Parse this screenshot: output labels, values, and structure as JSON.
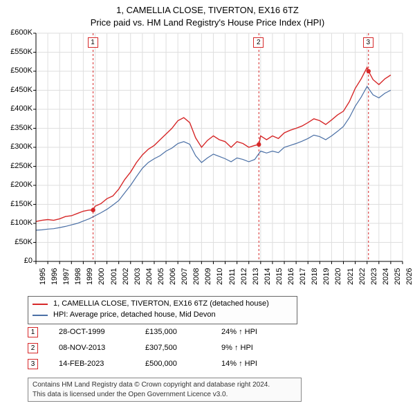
{
  "title_line1": "1, CAMELLIA CLOSE, TIVERTON, EX16 6TZ",
  "title_line2": "Price paid vs. HM Land Registry's House Price Index (HPI)",
  "chart": {
    "type": "line",
    "background_color": "#ffffff",
    "grid_color": "#dedede",
    "axis_color": "#000000",
    "axis_fontsize": 11,
    "ylim": [
      0,
      600000
    ],
    "ytick_step": 50000,
    "ytick_labels": [
      "£0",
      "£50K",
      "£100K",
      "£150K",
      "£200K",
      "£250K",
      "£300K",
      "£350K",
      "£400K",
      "£450K",
      "£500K",
      "£550K",
      "£600K"
    ],
    "xlim": [
      1995,
      2026
    ],
    "xtick_step": 1,
    "xtick_labels": [
      "1995",
      "1996",
      "1997",
      "1998",
      "1999",
      "2000",
      "2001",
      "2002",
      "2003",
      "2004",
      "2005",
      "2006",
      "2007",
      "2008",
      "2009",
      "2010",
      "2011",
      "2012",
      "2013",
      "2014",
      "2015",
      "2016",
      "2017",
      "2018",
      "2019",
      "2020",
      "2021",
      "2022",
      "2023",
      "2024",
      "2025",
      "2026"
    ],
    "series": [
      {
        "name": "price_paid",
        "label": "1, CAMELLIA CLOSE, TIVERTON, EX16 6TZ (detached house)",
        "color": "#d62728",
        "line_width": 1.4,
        "x": [
          1995.0,
          1995.5,
          1996.0,
          1996.5,
          1997.0,
          1997.5,
          1998.0,
          1998.5,
          1999.0,
          1999.5,
          1999.8,
          2000.0,
          2000.5,
          2001.0,
          2001.5,
          2002.0,
          2002.5,
          2003.0,
          2003.5,
          2004.0,
          2004.5,
          2005.0,
          2005.5,
          2006.0,
          2006.5,
          2007.0,
          2007.5,
          2008.0,
          2008.5,
          2009.0,
          2009.5,
          2010.0,
          2010.5,
          2011.0,
          2011.5,
          2012.0,
          2012.5,
          2013.0,
          2013.5,
          2013.85,
          2014.0,
          2014.5,
          2015.0,
          2015.5,
          2016.0,
          2016.5,
          2017.0,
          2017.5,
          2018.0,
          2018.5,
          2019.0,
          2019.5,
          2020.0,
          2020.5,
          2021.0,
          2021.5,
          2022.0,
          2022.5,
          2023.0,
          2023.12,
          2023.5,
          2024.0,
          2024.5,
          2025.0
        ],
        "y": [
          105000,
          108000,
          110000,
          108000,
          112000,
          118000,
          120000,
          126000,
          132000,
          135000,
          135000,
          145000,
          152000,
          165000,
          172000,
          190000,
          215000,
          235000,
          260000,
          280000,
          295000,
          305000,
          320000,
          335000,
          350000,
          370000,
          378000,
          365000,
          325000,
          300000,
          318000,
          330000,
          320000,
          315000,
          300000,
          315000,
          310000,
          300000,
          305000,
          307500,
          330000,
          320000,
          330000,
          323000,
          338000,
          345000,
          350000,
          356000,
          365000,
          375000,
          370000,
          360000,
          372000,
          385000,
          395000,
          420000,
          455000,
          480000,
          510000,
          500000,
          478000,
          465000,
          480000,
          490000
        ]
      },
      {
        "name": "hpi",
        "label": "HPI: Average price, detached house, Mid Devon",
        "color": "#4a6fa5",
        "line_width": 1.2,
        "x": [
          1995.0,
          1995.5,
          1996.0,
          1996.5,
          1997.0,
          1997.5,
          1998.0,
          1998.5,
          1999.0,
          1999.5,
          2000.0,
          2000.5,
          2001.0,
          2001.5,
          2002.0,
          2002.5,
          2003.0,
          2003.5,
          2004.0,
          2004.5,
          2005.0,
          2005.5,
          2006.0,
          2006.5,
          2007.0,
          2007.5,
          2008.0,
          2008.5,
          2009.0,
          2009.5,
          2010.0,
          2010.5,
          2011.0,
          2011.5,
          2012.0,
          2012.5,
          2013.0,
          2013.5,
          2014.0,
          2014.5,
          2015.0,
          2015.5,
          2016.0,
          2016.5,
          2017.0,
          2017.5,
          2018.0,
          2018.5,
          2019.0,
          2019.5,
          2020.0,
          2020.5,
          2021.0,
          2021.5,
          2022.0,
          2022.5,
          2023.0,
          2023.5,
          2024.0,
          2024.5,
          2025.0
        ],
        "y": [
          82000,
          83000,
          85000,
          86000,
          89000,
          92000,
          96000,
          100000,
          106000,
          112000,
          120000,
          128000,
          137000,
          148000,
          160000,
          180000,
          200000,
          223000,
          245000,
          260000,
          270000,
          278000,
          290000,
          298000,
          310000,
          315000,
          308000,
          278000,
          260000,
          272000,
          282000,
          276000,
          270000,
          262000,
          272000,
          268000,
          262000,
          268000,
          290000,
          285000,
          290000,
          286000,
          300000,
          305000,
          310000,
          316000,
          323000,
          332000,
          328000,
          320000,
          330000,
          342000,
          355000,
          378000,
          408000,
          432000,
          460000,
          438000,
          430000,
          442000,
          450000
        ]
      }
    ],
    "markers": [
      {
        "num": "1",
        "x": 1999.83,
        "y": 135000,
        "vline_color": "#d62728",
        "badge_border": "#d62728"
      },
      {
        "num": "2",
        "x": 2013.85,
        "y": 307500,
        "vline_color": "#d62728",
        "badge_border": "#d62728"
      },
      {
        "num": "3",
        "x": 2023.12,
        "y": 500000,
        "vline_color": "#d62728",
        "badge_border": "#d62728"
      }
    ],
    "vline_dash": "3,3"
  },
  "legend": {
    "border_color": "#666666",
    "series": [
      {
        "color": "#d62728",
        "label": "1, CAMELLIA CLOSE, TIVERTON, EX16 6TZ (detached house)"
      },
      {
        "color": "#4a6fa5",
        "label": "HPI: Average price, detached house, Mid Devon"
      }
    ]
  },
  "transactions": [
    {
      "num": "1",
      "date": "28-OCT-1999",
      "price": "£135,000",
      "pct": "24% ↑ HPI",
      "badge_border": "#d62728"
    },
    {
      "num": "2",
      "date": "08-NOV-2013",
      "price": "£307,500",
      "pct": "9% ↑ HPI",
      "badge_border": "#d62728"
    },
    {
      "num": "3",
      "date": "14-FEB-2023",
      "price": "£500,000",
      "pct": "14% ↑ HPI",
      "badge_border": "#d62728"
    }
  ],
  "footer_line1": "Contains HM Land Registry data © Crown copyright and database right 2024.",
  "footer_line2": "This data is licensed under the Open Government Licence v3.0."
}
